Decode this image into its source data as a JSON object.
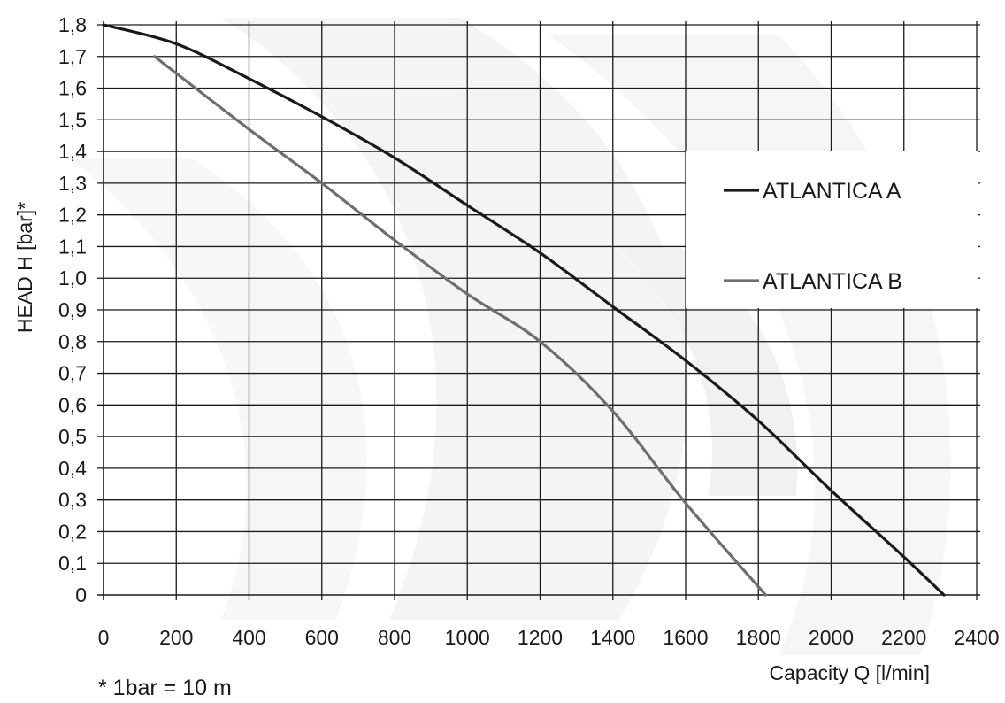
{
  "chart_data": {
    "type": "line",
    "xlabel": "Capacity Q [l/min]",
    "ylabel": "HEAD H [bar]*",
    "footnote": "* 1bar = 10 m",
    "xlim": [
      0,
      2400
    ],
    "ylim": [
      0,
      1.8
    ],
    "x_ticks": [
      "0",
      "200",
      "400",
      "600",
      "800",
      "1000",
      "1200",
      "1400",
      "1600",
      "1800",
      "2000",
      "2200",
      "2400"
    ],
    "y_ticks": [
      "0",
      "0,1",
      "0,2",
      "0,3",
      "0,4",
      "0,5",
      "0,6",
      "0,7",
      "0,8",
      "0,9",
      "1,0",
      "1,1",
      "1,2",
      "1,3",
      "1,4",
      "1,5",
      "1,6",
      "1,7",
      "1,8"
    ],
    "grid": true,
    "legend_position": "right",
    "series": [
      {
        "name": "ATLANTICA A",
        "color": "#1a1a1a",
        "points": [
          [
            0,
            1.8
          ],
          [
            200,
            1.74
          ],
          [
            400,
            1.63
          ],
          [
            600,
            1.51
          ],
          [
            800,
            1.38
          ],
          [
            1000,
            1.23
          ],
          [
            1200,
            1.08
          ],
          [
            1400,
            0.91
          ],
          [
            1600,
            0.74
          ],
          [
            1800,
            0.55
          ],
          [
            2000,
            0.33
          ],
          [
            2200,
            0.12
          ],
          [
            2310,
            0.0
          ]
        ]
      },
      {
        "name": "ATLANTICA B",
        "color": "#6e6e6e",
        "points": [
          [
            140,
            1.7
          ],
          [
            400,
            1.47
          ],
          [
            600,
            1.3
          ],
          [
            800,
            1.12
          ],
          [
            1000,
            0.95
          ],
          [
            1200,
            0.8
          ],
          [
            1400,
            0.58
          ],
          [
            1600,
            0.29
          ],
          [
            1820,
            0.0
          ]
        ]
      }
    ]
  }
}
